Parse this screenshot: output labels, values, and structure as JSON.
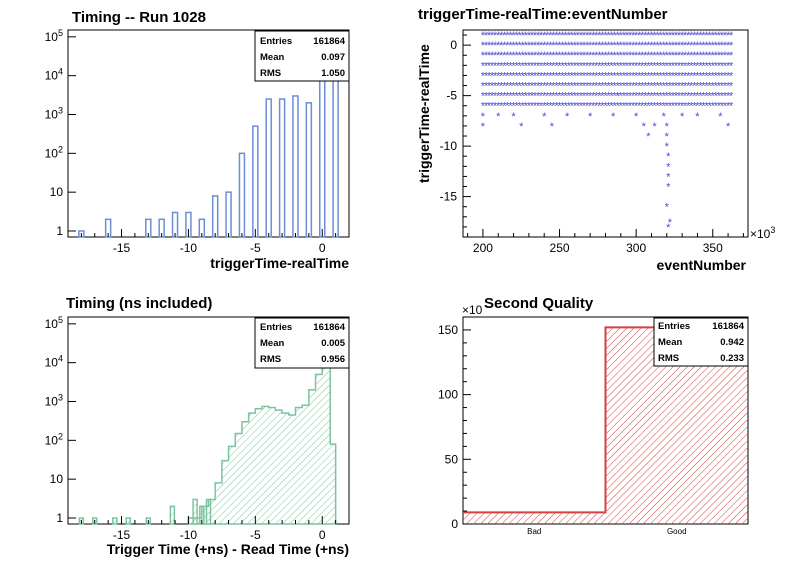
{
  "chart_data": [
    {
      "type": "bar",
      "title": "Timing -- Run 1028",
      "xlabel": "triggerTime-realTime",
      "ylabel": "",
      "log_y": true,
      "xlim": [
        -19,
        2
      ],
      "ylim": [
        0.7,
        150000
      ],
      "x_ticks": [
        -15,
        -10,
        -5,
        0
      ],
      "y_ticks": [
        "1",
        "10",
        "10^2",
        "10^3",
        "10^4",
        "10^5"
      ],
      "color": "#6a8fd4",
      "x": [
        -18,
        -16,
        -13,
        -12,
        -11,
        -10,
        -9,
        -8,
        -7,
        -6,
        -5,
        -4,
        -3,
        -2,
        -1,
        0,
        1
      ],
      "values": [
        1,
        2,
        2,
        2,
        3,
        3,
        2,
        8,
        10,
        100,
        500,
        2500,
        2500,
        3000,
        2000,
        90000,
        60000
      ],
      "stats": {
        "entries_label": "Entries",
        "entries": "161864",
        "mean_label": "Mean",
        "mean": "0.097",
        "rms_label": "RMS",
        "rms": "1.050"
      }
    },
    {
      "type": "scatter",
      "title": "triggerTime-realTime:eventNumber",
      "xlabel": "eventNumber",
      "ylabel": "triggerTime-realTime",
      "x_exponent": "10^3",
      "xlim": [
        187,
        373
      ],
      "ylim": [
        -19,
        1.5
      ],
      "x_ticks": [
        200,
        250,
        300,
        350
      ],
      "y_ticks": [
        0,
        -5,
        -10,
        -15
      ],
      "color": "#4a4ad6",
      "band_x_range": [
        200,
        362
      ],
      "band_y_levels": [
        1,
        0,
        -1,
        -2,
        -3,
        -4,
        -5,
        -6
      ],
      "outliers": [
        [
          200,
          -7
        ],
        [
          200,
          -8
        ],
        [
          210,
          -7
        ],
        [
          220,
          -7
        ],
        [
          225,
          -8
        ],
        [
          240,
          -7
        ],
        [
          245,
          -8
        ],
        [
          255,
          -7
        ],
        [
          270,
          -7
        ],
        [
          285,
          -7
        ],
        [
          300,
          -7
        ],
        [
          305,
          -8
        ],
        [
          308,
          -9
        ],
        [
          312,
          -8
        ],
        [
          318,
          -7
        ],
        [
          320,
          -8
        ],
        [
          320,
          -9
        ],
        [
          320,
          -10
        ],
        [
          321,
          -11
        ],
        [
          321,
          -12
        ],
        [
          321,
          -13
        ],
        [
          321,
          -14
        ],
        [
          320,
          -16
        ],
        [
          321,
          -18
        ],
        [
          322,
          -17.5
        ],
        [
          330,
          -7
        ],
        [
          340,
          -7
        ],
        [
          355,
          -7
        ],
        [
          360,
          -8
        ],
        [
          288,
          -5
        ]
      ]
    },
    {
      "type": "area",
      "title": "Timing (ns included)",
      "xlabel": "Trigger Time (+ns) - Read Time (+ns)",
      "ylabel": "",
      "log_y": true,
      "xlim": [
        -19,
        2
      ],
      "ylim": [
        0.7,
        150000
      ],
      "x_ticks": [
        -15,
        -10,
        -5,
        0
      ],
      "y_ticks": [
        "1",
        "10",
        "10^2",
        "10^3",
        "10^4",
        "10^5"
      ],
      "color": "#7cc4a0",
      "spikes": [
        [
          -18,
          1
        ],
        [
          -17,
          1
        ],
        [
          -15.5,
          1
        ],
        [
          -14.5,
          1
        ],
        [
          -13,
          1
        ],
        [
          -11.2,
          2
        ],
        [
          -9.5,
          3
        ],
        [
          -9,
          2
        ],
        [
          -8.5,
          3
        ]
      ],
      "bins_x": [
        -10,
        -9.5,
        -9,
        -8.5,
        -8,
        -7.5,
        -7,
        -6.5,
        -6,
        -5.5,
        -5,
        -4.5,
        -4,
        -3.5,
        -3,
        -2.5,
        -2,
        -1.5,
        -1,
        -0.5,
        0,
        0.3,
        0.6,
        1
      ],
      "bins_y": [
        1,
        1,
        2,
        3,
        8,
        30,
        70,
        150,
        300,
        500,
        650,
        750,
        700,
        600,
        500,
        450,
        700,
        800,
        2000,
        5000,
        30000,
        100000,
        80,
        5
      ],
      "stats": {
        "entries_label": "Entries",
        "entries": "161864",
        "mean_label": "Mean",
        "mean": "0.005",
        "rms_label": "RMS",
        "rms": "0.956"
      }
    },
    {
      "type": "bar",
      "title": "Second Quality",
      "xlabel": "",
      "ylabel": "",
      "y_exponent": "×10",
      "categories": [
        "Bad",
        "Good"
      ],
      "values": [
        9,
        152
      ],
      "ylim": [
        0,
        160
      ],
      "y_ticks": [
        0,
        50,
        100,
        150
      ],
      "color": "#d64040",
      "stats": {
        "entries_label": "Entries",
        "entries": "161864",
        "mean_label": "Mean",
        "mean": "0.942",
        "rms_label": "RMS",
        "rms": "0.233"
      }
    }
  ]
}
